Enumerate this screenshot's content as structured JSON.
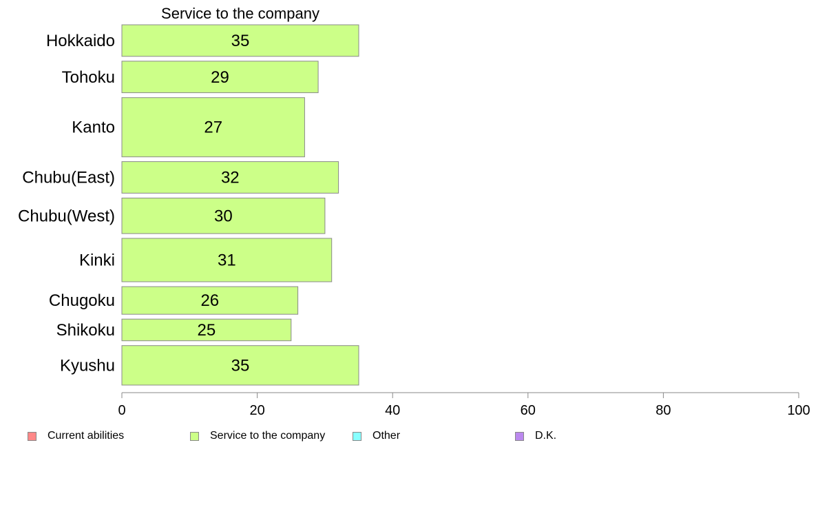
{
  "chart_data": {
    "type": "bar",
    "orientation": "horizontal",
    "title": "Service to the company",
    "categories": [
      "Hokkaido",
      "Tohoku",
      "Kanto",
      "Chubu(East)",
      "Chubu(West)",
      "Kinki",
      "Chugoku",
      "Shikoku",
      "Kyushu"
    ],
    "category_weights": [
      0.8,
      0.8,
      1.5,
      0.8,
      0.9,
      1.1,
      0.7,
      0.55,
      1.0
    ],
    "series": [
      {
        "name": "Service to the company",
        "values": [
          35,
          29,
          27,
          32,
          30,
          31,
          26,
          25,
          35
        ],
        "color": "#ccff88"
      }
    ],
    "value_labels": [
      "35",
      "29",
      "27",
      "32",
      "30",
      "31",
      "26",
      "25",
      "35"
    ],
    "xlim": [
      0,
      100
    ],
    "xticks": [
      0,
      20,
      40,
      60,
      80,
      100
    ],
    "xtick_labels": [
      "0",
      "20",
      "40",
      "60",
      "80",
      "100"
    ],
    "grid": false,
    "legend": {
      "placement": "bottom",
      "items": [
        {
          "label": "Current abilities",
          "color": "#ff8888"
        },
        {
          "label": "Service to the company",
          "color": "#ccff88"
        },
        {
          "label": "Other",
          "color": "#88ffff"
        },
        {
          "label": "D.K.",
          "color": "#bb88ee"
        }
      ]
    }
  }
}
